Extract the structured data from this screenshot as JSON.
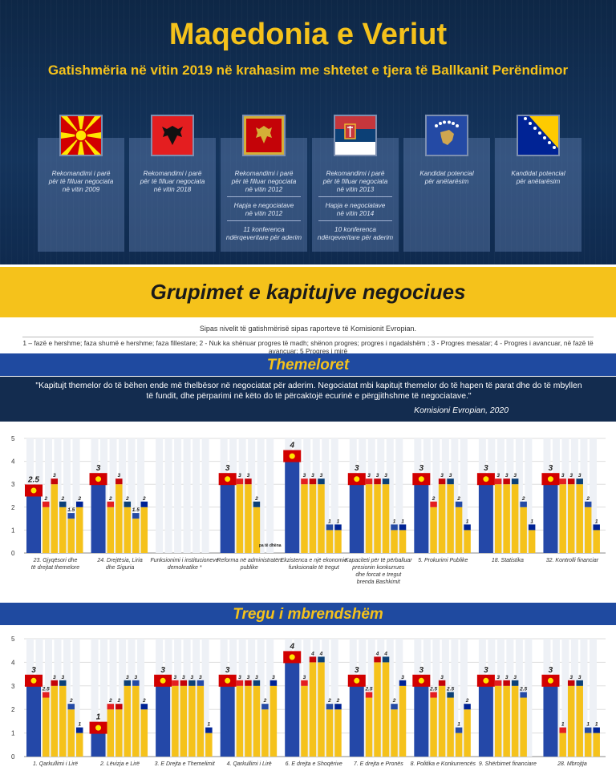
{
  "header": {
    "title": "Maqedonia e Veriut",
    "subtitle": "Gatishmëria në vitin 2019 në krahasim me shtetet e tjera të Ballkanit Perëndimor"
  },
  "countries": [
    {
      "flag": "north-macedonia-flag",
      "lines": [
        "Rekomandimi i parë",
        "për të filluar negociata",
        "në vitin 2009"
      ],
      "sections": []
    },
    {
      "flag": "albania-flag",
      "lines": [
        "Rekomandimi i parë",
        "për të filluar negociata",
        "në vitin 2018"
      ],
      "sections": []
    },
    {
      "flag": "montenegro-flag",
      "lines": [
        "Rekomandimi i parë",
        "për të filluar negociata",
        "në vitin 2012"
      ],
      "sections": [
        [
          "Hapja e negociatave",
          "në vitin 2012"
        ],
        [
          "11 konferenca",
          "ndërqeveritare për aderim"
        ]
      ]
    },
    {
      "flag": "serbia-flag",
      "lines": [
        "Rekomandimi i parë",
        "për të filluar negociata",
        "në vitin 2013"
      ],
      "sections": [
        [
          "Hapja e negociatave",
          "në vitin 2014"
        ],
        [
          "10 konferenca",
          "ndërqeveritare për aderim"
        ]
      ]
    },
    {
      "flag": "kosovo-flag",
      "lines": [
        "Kandidat potencial",
        "për anëtarësim"
      ],
      "sections": []
    },
    {
      "flag": "bosnia-flag",
      "lines": [
        "Kandidat potencial",
        "për anëtarësim"
      ],
      "sections": []
    }
  ],
  "groupings_title": "Grupimet e kapitujve negociues",
  "notes": {
    "title": "Sipas nivelit të gatishmërisë sipas raporteve të Komisionit Evropian.",
    "legend": "1 – fazë e hershme; faza shumë e hershme; faza fillestare; 2 - Nuk ka shënuar progres të madh; shënon progres; progres i ngadalshëm ; 3 - Progres mesatar; 4 - Progres i avancuar, në fazë të avancuar; 5 Progres i mirë"
  },
  "sections": {
    "fundamentals": {
      "title": "Themeloret",
      "quote": "\"Kapitujt themelor do të bëhen ende më thelbësor në negociatat për aderim. Negociatat mbi kapitujt themelor do të hapen të parat dhe do të mbyllen të fundit, dhe përparimi në këto do të përcaktojë ecurinë e përgjithshme të negociatave.\"",
      "quote_source": "Komisioni Evropian, 2020"
    },
    "internal_market": {
      "title": "Tregu i mbrendshëm"
    }
  },
  "colors": {
    "navy": "#0f2a4e",
    "yellow": "#f5c21b",
    "blue": "#2448a8",
    "band": "#1f4aa0"
  },
  "chart_data": [
    {
      "type": "bar",
      "ylim": [
        0,
        5
      ],
      "yticks": [
        "0",
        "1",
        "2",
        "3",
        "4",
        "5"
      ],
      "series_flags": [
        "north-macedonia-flag",
        "albania-flag",
        "montenegro-flag",
        "serbia-flag",
        "kosovo-flag",
        "bosnia-flag"
      ],
      "groups": [
        {
          "label": [
            "23. Gjyqësori dhe",
            "të drejtat themelore"
          ],
          "values": [
            2.5,
            2,
            3,
            2,
            1.5,
            2
          ],
          "value_labels": [
            "2.5",
            "2",
            "3",
            "2",
            "1.5",
            "2"
          ]
        },
        {
          "label": [
            "24. Drejtësia, Liria",
            "dhe Siguria"
          ],
          "values": [
            3,
            2,
            3,
            2,
            1.5,
            2
          ],
          "value_labels": [
            "3",
            "2",
            "3",
            "2",
            "1.5",
            "2"
          ]
        },
        {
          "label": [
            "Funksionimi i institucioneve",
            "demokratike *"
          ],
          "values": [],
          "value_labels": []
        },
        {
          "label": [
            "Reforma në administratën",
            "publike"
          ],
          "values": [
            3,
            3,
            3,
            2,
            0,
            0
          ],
          "value_labels": [
            "3",
            "3",
            "3",
            "2",
            "",
            ""
          ],
          "note": "pa të dhëna"
        },
        {
          "label": [
            "Ekzistenca e një ekonomie",
            "funksionale të tregut"
          ],
          "values": [
            4,
            3,
            3,
            3,
            1,
            1
          ],
          "value_labels": [
            "4",
            "3",
            "3",
            "3",
            "1",
            "1"
          ]
        },
        {
          "label": [
            "Kapaciteti për të përballuar",
            "presionin konkurrues",
            "dhe forcat e tregut",
            "brenda Bashkimit"
          ],
          "values": [
            3,
            3,
            3,
            3,
            1,
            1
          ],
          "value_labels": [
            "3",
            "3",
            "3",
            "3",
            "1",
            "1"
          ]
        },
        {
          "label": [
            "5. Prokurimi Publike"
          ],
          "values": [
            3,
            2,
            3,
            3,
            2,
            1
          ],
          "value_labels": [
            "3",
            "2",
            "3",
            "3",
            "2",
            "1"
          ]
        },
        {
          "label": [
            "18. Statistika"
          ],
          "values": [
            3,
            3,
            3,
            3,
            2,
            1
          ],
          "value_labels": [
            "3",
            "3",
            "3",
            "3",
            "2",
            "1"
          ]
        },
        {
          "label": [
            "32. Kontrolli financiar"
          ],
          "values": [
            3,
            3,
            3,
            3,
            2,
            1
          ],
          "value_labels": [
            "3",
            "3",
            "3",
            "3",
            "2",
            "1"
          ]
        }
      ]
    },
    {
      "type": "bar",
      "ylim": [
        0,
        5
      ],
      "yticks": [
        "0",
        "1",
        "2",
        "3",
        "4",
        "5"
      ],
      "series_flags": [
        "north-macedonia-flag",
        "albania-flag",
        "montenegro-flag",
        "serbia-flag",
        "kosovo-flag",
        "bosnia-flag"
      ],
      "groups": [
        {
          "label": [
            "1. Qarkullimi i Lirë"
          ],
          "values": [
            3,
            2.5,
            3,
            3,
            2,
            1
          ],
          "value_labels": [
            "3",
            "2.5",
            "3",
            "3",
            "2",
            "1"
          ]
        },
        {
          "label": [
            "2. Lëvizja e Lirë"
          ],
          "values": [
            1,
            2,
            2,
            3,
            3,
            2
          ],
          "value_labels": [
            "1",
            "2",
            "2",
            "3",
            "3",
            "2"
          ]
        },
        {
          "label": [
            "3. E Drejta e Themelimit"
          ],
          "values": [
            3,
            3,
            3,
            3,
            3,
            1
          ],
          "value_labels": [
            "3",
            "3",
            "3",
            "3",
            "3",
            "1"
          ]
        },
        {
          "label": [
            "4. Qarkullimi i Lirë"
          ],
          "values": [
            3,
            3,
            3,
            3,
            2,
            3
          ],
          "value_labels": [
            "3",
            "3",
            "3",
            "3",
            "2",
            "3"
          ]
        },
        {
          "label": [
            "6. E drejta e Shoqërive"
          ],
          "values": [
            4,
            3,
            4,
            4,
            2,
            2
          ],
          "value_labels": [
            "4",
            "3",
            "4",
            "4",
            "2",
            "2"
          ]
        },
        {
          "label": [
            "7. E drejta e Pronës"
          ],
          "values": [
            3,
            2.5,
            4,
            4,
            2,
            3
          ],
          "value_labels": [
            "3",
            "2.5",
            "4",
            "4",
            "2",
            "3"
          ]
        },
        {
          "label": [
            "8. Politika e Konkurrencës"
          ],
          "values": [
            3,
            2.5,
            3,
            2.5,
            1,
            2
          ],
          "value_labels": [
            "3",
            "2.5",
            "3",
            "2.5",
            "1",
            "2"
          ]
        },
        {
          "label": [
            "9. Shërbimet financiare"
          ],
          "values": [
            3,
            3,
            3,
            3,
            2.5,
            0
          ],
          "value_labels": [
            "3",
            "3",
            "3",
            "3",
            "2.5",
            ""
          ]
        },
        {
          "label": [
            "28. Mbrojtja"
          ],
          "values": [
            3,
            1,
            3,
            3,
            1,
            1
          ],
          "value_labels": [
            "3",
            "1",
            "3",
            "3",
            "1",
            "1"
          ]
        }
      ]
    }
  ]
}
